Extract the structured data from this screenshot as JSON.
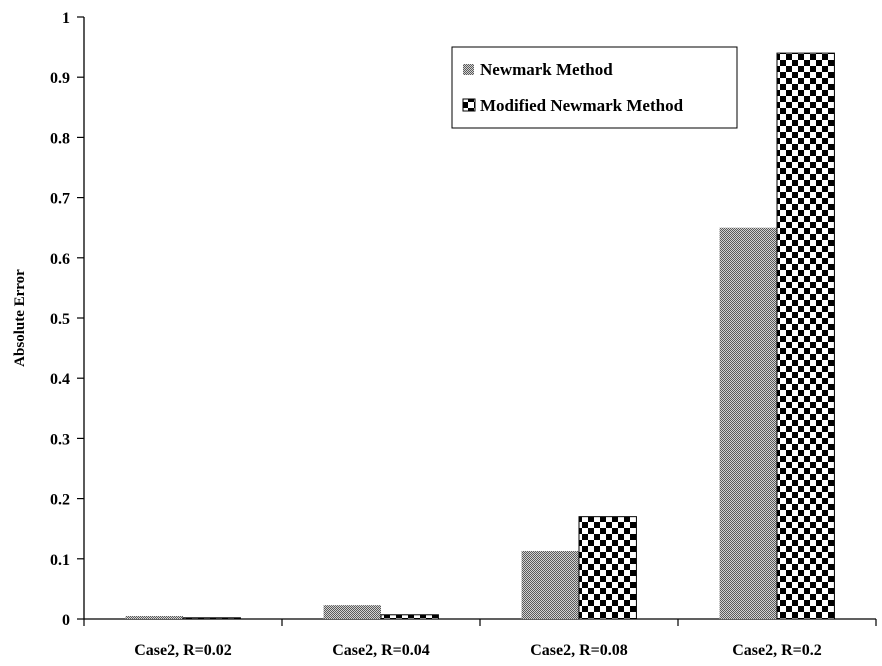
{
  "chart_data": {
    "type": "bar",
    "ylabel": "Absolute Error",
    "xlabel": "",
    "categories": [
      "Case2, R=0.02",
      "Case2, R=0.04",
      "Case2, R=0.08",
      "Case2, R=0.2"
    ],
    "series": [
      {
        "name": "Newmark Method",
        "values": [
          0.005,
          0.023,
          0.113,
          0.65
        ],
        "pattern": "fine-grey"
      },
      {
        "name": "Modified Newmark Method",
        "values": [
          0.002,
          0.007,
          0.17,
          0.94
        ],
        "pattern": "checkerboard"
      }
    ],
    "ylim": [
      0,
      1
    ],
    "yticks": [
      "0",
      "0.1",
      "0.2",
      "0.3",
      "0.4",
      "0.5",
      "0.6",
      "0.7",
      "0.8",
      "0.9",
      "1"
    ],
    "grid": false,
    "legend_position": "top-right"
  }
}
